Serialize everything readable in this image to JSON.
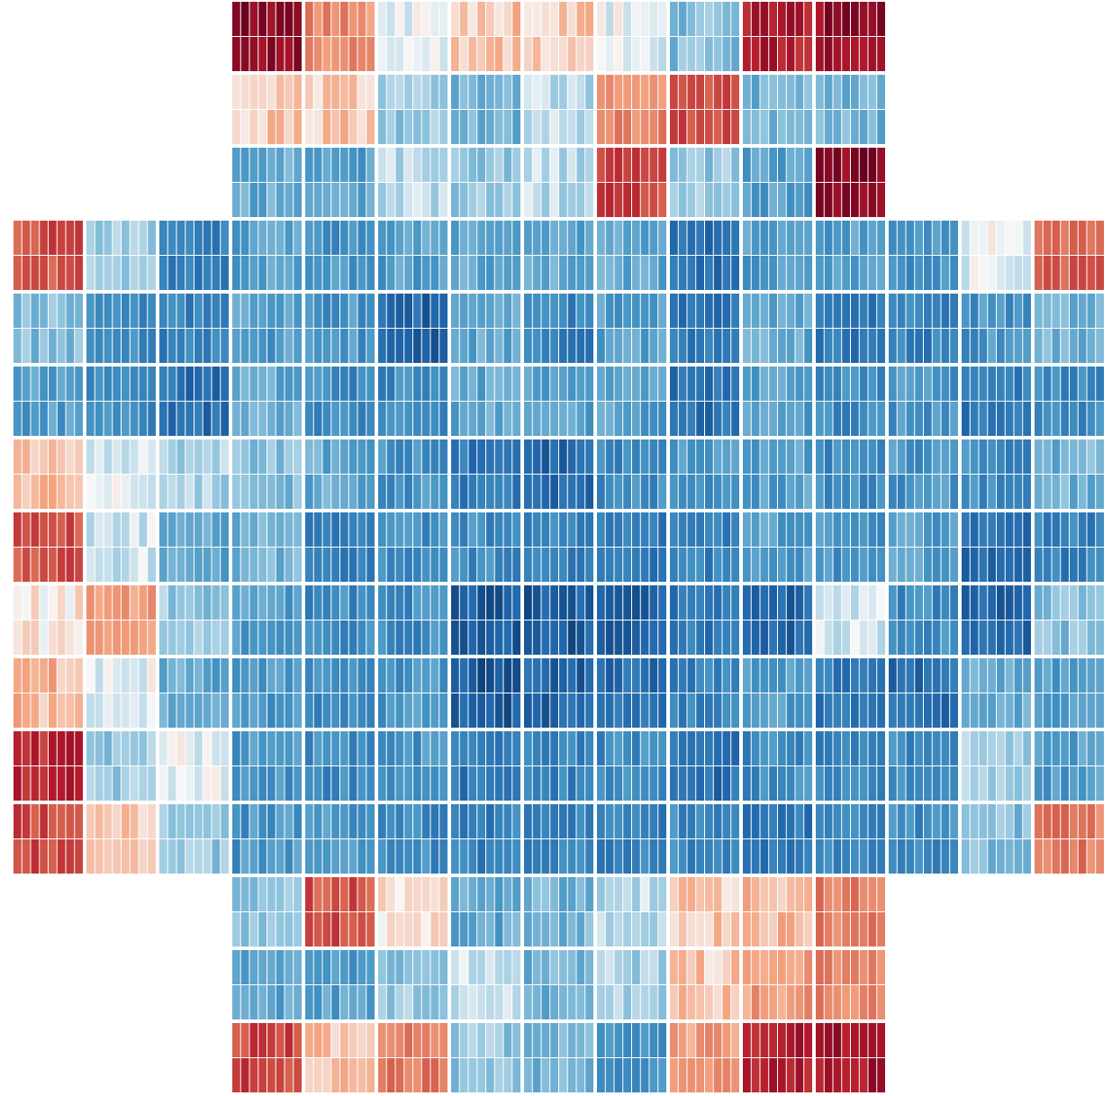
{
  "chart_data": {
    "type": "heatmap",
    "title": "",
    "xlabel": "",
    "ylabel": "",
    "grid_shape": "cross of 2x8 pixel sub-blocks",
    "colormap": "RdBu_r",
    "value_range": [
      -1,
      1
    ],
    "colorbar": false,
    "block_grid": {
      "cols": 15,
      "rows": 15,
      "block_cols": 8,
      "block_rows": 2
    },
    "present_rows": [
      [
        3,
        4,
        5,
        6,
        7,
        8,
        9,
        10,
        11
      ],
      [
        3,
        4,
        5,
        6,
        7,
        8,
        9,
        10,
        11
      ],
      [
        3,
        4,
        5,
        6,
        7,
        8,
        9,
        10,
        11
      ],
      [
        0,
        1,
        2,
        3,
        4,
        5,
        6,
        7,
        8,
        9,
        10,
        11,
        12,
        13,
        14
      ],
      [
        0,
        1,
        2,
        3,
        4,
        5,
        6,
        7,
        8,
        9,
        10,
        11,
        12,
        13,
        14
      ],
      [
        0,
        1,
        2,
        3,
        4,
        5,
        6,
        7,
        8,
        9,
        10,
        11,
        12,
        13,
        14
      ],
      [
        0,
        1,
        2,
        3,
        4,
        5,
        6,
        7,
        8,
        9,
        10,
        11,
        12,
        13,
        14
      ],
      [
        0,
        1,
        2,
        3,
        4,
        5,
        6,
        7,
        8,
        9,
        10,
        11,
        12,
        13,
        14
      ],
      [
        0,
        1,
        2,
        3,
        4,
        5,
        6,
        7,
        8,
        9,
        10,
        11,
        12,
        13,
        14
      ],
      [
        0,
        1,
        2,
        3,
        4,
        5,
        6,
        7,
        8,
        9,
        10,
        11,
        12,
        13,
        14
      ],
      [
        0,
        1,
        2,
        3,
        4,
        5,
        6,
        7,
        8,
        9,
        10,
        11,
        12,
        13,
        14
      ],
      [
        0,
        1,
        2,
        3,
        4,
        5,
        6,
        7,
        8,
        9,
        10,
        11,
        12,
        13,
        14
      ],
      [
        3,
        4,
        5,
        6,
        7,
        8,
        9,
        10,
        11
      ],
      [
        3,
        4,
        5,
        6,
        7,
        8,
        9,
        10,
        11
      ],
      [
        3,
        4,
        5,
        6,
        7,
        8,
        9,
        10,
        11
      ]
    ],
    "block_values": [
      [
        null,
        null,
        null,
        0.9,
        0.35,
        -0.05,
        0.15,
        0.15,
        -0.05,
        -0.3,
        0.75,
        0.85,
        null,
        null,
        null
      ],
      [
        null,
        null,
        null,
        0.15,
        0.15,
        -0.25,
        -0.35,
        -0.15,
        0.35,
        0.55,
        -0.35,
        -0.35,
        null,
        null,
        null
      ],
      [
        null,
        null,
        null,
        -0.4,
        -0.45,
        -0.15,
        -0.25,
        -0.15,
        0.6,
        -0.25,
        -0.45,
        0.9,
        null,
        null,
        null
      ],
      [
        0.55,
        -0.2,
        -0.6,
        -0.45,
        -0.5,
        -0.45,
        -0.4,
        -0.4,
        -0.4,
        -0.7,
        -0.45,
        -0.45,
        -0.5,
        -0.05,
        0.5
      ],
      [
        -0.3,
        -0.55,
        -0.6,
        -0.45,
        -0.5,
        -0.75,
        -0.4,
        -0.6,
        -0.45,
        -0.65,
        -0.4,
        -0.65,
        -0.6,
        -0.5,
        -0.35
      ],
      [
        -0.45,
        -0.55,
        -0.7,
        -0.4,
        -0.55,
        -0.55,
        -0.4,
        -0.45,
        -0.45,
        -0.7,
        -0.45,
        -0.55,
        -0.5,
        -0.65,
        -0.55
      ],
      [
        0.2,
        -0.05,
        -0.2,
        -0.3,
        -0.4,
        -0.5,
        -0.65,
        -0.75,
        -0.55,
        -0.5,
        -0.45,
        -0.55,
        -0.5,
        -0.55,
        -0.35
      ],
      [
        0.55,
        -0.1,
        -0.4,
        -0.35,
        -0.6,
        -0.55,
        -0.55,
        -0.6,
        -0.65,
        -0.6,
        -0.45,
        -0.5,
        -0.45,
        -0.7,
        -0.6
      ],
      [
        0.05,
        0.3,
        -0.25,
        -0.45,
        -0.55,
        -0.55,
        -0.8,
        -0.8,
        -0.8,
        -0.65,
        -0.75,
        -0.1,
        -0.55,
        -0.75,
        -0.3
      ],
      [
        0.2,
        -0.05,
        -0.4,
        -0.5,
        -0.55,
        -0.5,
        -0.8,
        -0.75,
        -0.7,
        -0.6,
        -0.45,
        -0.65,
        -0.7,
        -0.4,
        -0.45
      ],
      [
        0.7,
        -0.25,
        -0.05,
        -0.5,
        -0.55,
        -0.5,
        -0.65,
        -0.6,
        -0.55,
        -0.7,
        -0.55,
        -0.6,
        -0.55,
        -0.2,
        -0.45
      ],
      [
        0.6,
        0.15,
        -0.25,
        -0.5,
        -0.5,
        -0.55,
        -0.6,
        -0.6,
        -0.6,
        -0.55,
        -0.65,
        -0.6,
        -0.55,
        -0.3,
        0.4
      ],
      [
        null,
        null,
        null,
        -0.25,
        0.55,
        0.05,
        -0.4,
        -0.35,
        -0.15,
        0.15,
        0.2,
        0.4,
        null,
        null,
        null
      ],
      [
        null,
        null,
        null,
        -0.4,
        -0.45,
        -0.25,
        -0.1,
        -0.35,
        -0.2,
        0.15,
        0.3,
        0.35,
        null,
        null,
        null
      ],
      [
        null,
        null,
        null,
        0.6,
        0.15,
        0.4,
        -0.25,
        -0.35,
        -0.5,
        0.3,
        0.75,
        0.8,
        null,
        null,
        null
      ]
    ]
  }
}
